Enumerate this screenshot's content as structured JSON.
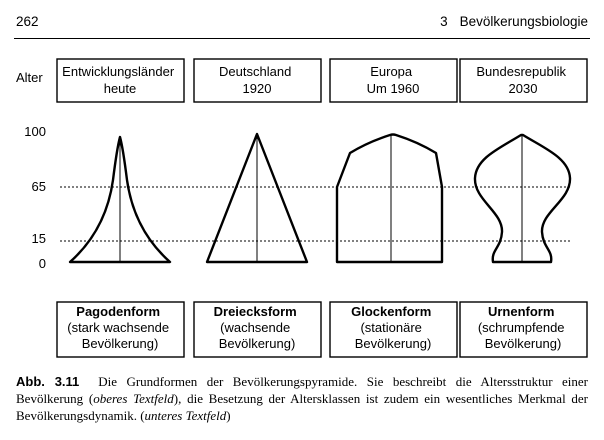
{
  "header": {
    "page_number": "262",
    "chapter_number": "3",
    "chapter_title": "Bevölkerungsbiologie"
  },
  "figure": {
    "axis_label": "Alter",
    "age_ticks": [
      "100",
      "65",
      "15",
      "0"
    ],
    "columns": [
      {
        "top_lines": [
          "Entwicklungsländer",
          "heute"
        ],
        "form_name": "Pagodenform",
        "form_desc": [
          "(stark wachsende",
          "Bevölkerung)"
        ]
      },
      {
        "top_lines": [
          "Deutschland",
          "1920"
        ],
        "form_name": "Dreiecksform",
        "form_desc": [
          "(wachsende",
          "Bevölkerung)"
        ]
      },
      {
        "top_lines": [
          "Europa",
          "Um 1960"
        ],
        "form_name": "Glockenform",
        "form_desc": [
          "(stationäre",
          "Bevölkerung)"
        ]
      },
      {
        "top_lines": [
          "Bundesrepublik",
          "2030"
        ],
        "form_name": "Urnenform",
        "form_desc": [
          "(schrumpfende",
          "Bevölkerung)"
        ]
      }
    ]
  },
  "caption": {
    "label": "Abb. 3.11",
    "text_1": "Die Grundformen der Bevölkerungspyramide. Sie beschreibt die Altersstruktur einer Bevölkerung (",
    "italic_1": "oberes Textfeld",
    "text_2": "), die Besetzung der Altersklassen ist zudem ein wesentliches Merkmal der Bevölkerungsdynamik. (",
    "italic_2": "unteres Textfeld",
    "text_3": ")"
  }
}
